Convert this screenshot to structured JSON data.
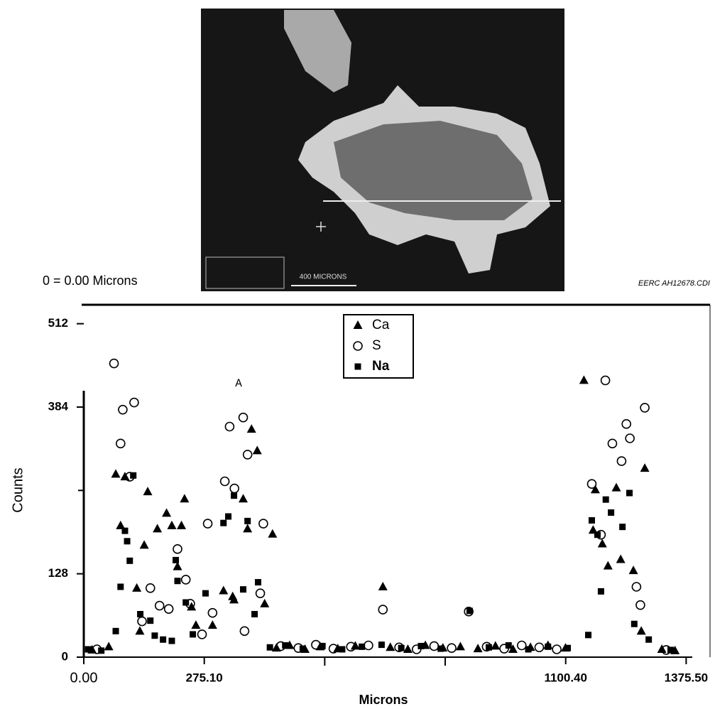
{
  "header": {
    "origin_note": "0 = 0.00 Microns",
    "file_id": "EERC AH12678.CDI"
  },
  "sem_image": {
    "scale_label": "400 MICRONS"
  },
  "chart_data": {
    "type": "scatter",
    "x_label": "Microns",
    "y_label": "Counts",
    "annotation": "A",
    "xlim": [
      0,
      1430
    ],
    "ylim": [
      0,
      540
    ],
    "xticks": [
      {
        "value": 0,
        "label": "0.00"
      },
      {
        "value": 275.1,
        "label": "275.10"
      },
      {
        "value": 1100.4,
        "label": "1100.40"
      },
      {
        "value": 1375.5,
        "label": "1375.50"
      }
    ],
    "minor_xticks": [
      550.2,
      825.3
    ],
    "yticks": [
      0,
      128,
      384,
      512
    ],
    "minor_yticks": [
      256
    ],
    "legend": "top-center",
    "series": [
      {
        "name": "Ca",
        "marker": "triangle",
        "color": "#000000",
        "x": [
          19,
          57,
          73,
          84,
          94,
          121,
          128,
          138,
          146,
          168,
          189,
          201,
          214,
          223,
          230,
          246,
          256,
          294,
          319,
          340,
          343,
          364,
          374,
          383,
          396,
          413,
          431,
          440,
          470,
          505,
          540,
          580,
          620,
          683,
          700,
          740,
          780,
          820,
          860,
          900,
          940,
          980,
          1020,
          1060,
          1100,
          1142,
          1163,
          1168,
          1184,
          1197,
          1216,
          1226,
          1255,
          1273,
          1281,
          1320,
          1350
        ],
        "y": [
          11,
          16,
          281,
          202,
          277,
          106,
          40,
          172,
          254,
          197,
          221,
          202,
          139,
          202,
          243,
          77,
          49,
          49,
          102,
          93,
          88,
          243,
          197,
          350,
          317,
          82,
          189,
          14,
          18,
          12,
          16,
          13,
          17,
          108,
          15,
          12,
          18,
          14,
          16,
          13,
          17,
          12,
          15,
          18,
          14,
          425,
          195,
          257,
          174,
          140,
          260,
          150,
          133,
          40,
          290,
          12,
          10
        ]
      },
      {
        "name": "S",
        "marker": "circle",
        "color": "#000000",
        "x": [
          30,
          69,
          84,
          89,
          105,
          115,
          133,
          152,
          173,
          194,
          214,
          233,
          243,
          270,
          283,
          294,
          322,
          333,
          344,
          364,
          367,
          374,
          403,
          410,
          450,
          490,
          530,
          570,
          610,
          650,
          683,
          720,
          760,
          800,
          840,
          879,
          920,
          960,
          1000,
          1040,
          1080,
          1160,
          1181,
          1191,
          1207,
          1228,
          1239,
          1247,
          1262,
          1271,
          1281,
          1330
        ],
        "y": [
          12,
          451,
          328,
          380,
          277,
          391,
          55,
          106,
          79,
          74,
          166,
          119,
          82,
          35,
          205,
          68,
          270,
          354,
          259,
          368,
          40,
          311,
          98,
          205,
          17,
          14,
          19,
          13,
          16,
          18,
          73,
          15,
          12,
          17,
          14,
          70,
          16,
          13,
          18,
          15,
          12,
          266,
          188,
          425,
          328,
          301,
          358,
          336,
          108,
          80,
          383,
          11
        ]
      },
      {
        "name": "Na",
        "marker": "square",
        "color": "#000000",
        "x": [
          10,
          40,
          73,
          84,
          94,
          99,
          105,
          113,
          129,
          152,
          162,
          181,
          201,
          210,
          214,
          233,
          249,
          278,
          319,
          330,
          343,
          364,
          374,
          390,
          398,
          425,
          460,
          500,
          545,
          590,
          635,
          680,
          725,
          770,
          815,
          881,
          925,
          970,
          1015,
          1060,
          1105,
          1152,
          1160,
          1173,
          1181,
          1192,
          1204,
          1230,
          1246,
          1257,
          1290,
          1340
        ],
        "y": [
          12,
          10,
          40,
          108,
          194,
          178,
          148,
          279,
          66,
          56,
          33,
          27,
          25,
          149,
          117,
          84,
          35,
          98,
          206,
          216,
          248,
          104,
          209,
          66,
          115,
          15,
          18,
          13,
          17,
          12,
          16,
          19,
          14,
          17,
          13,
          71,
          15,
          18,
          12,
          16,
          14,
          34,
          210,
          188,
          101,
          242,
          222,
          200,
          252,
          51,
          27,
          11
        ]
      }
    ]
  }
}
